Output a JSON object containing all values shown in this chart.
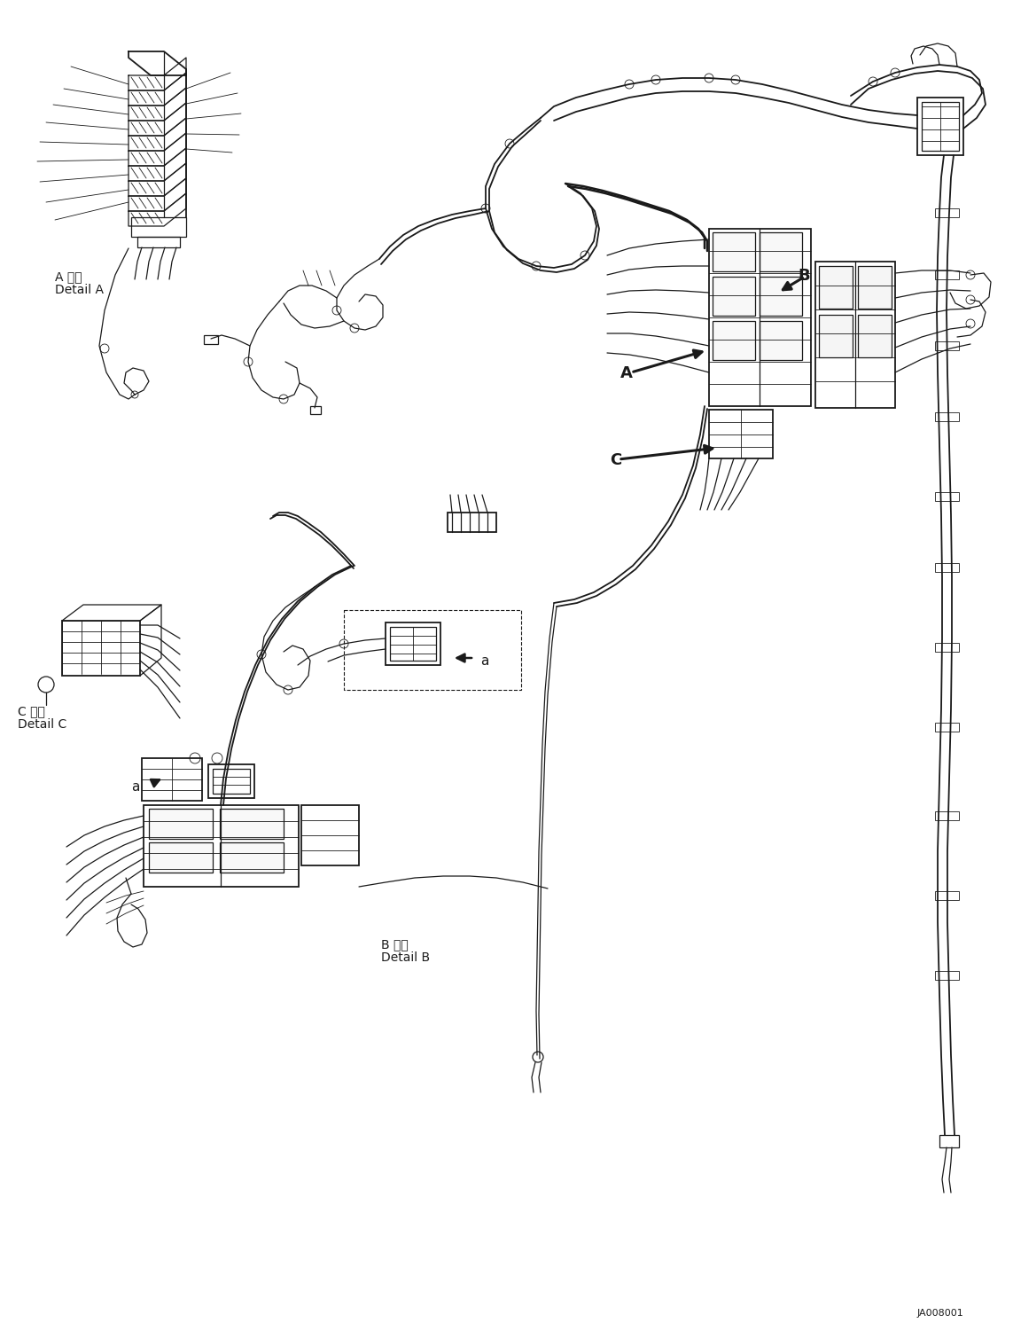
{
  "bg_color": "#ffffff",
  "line_color": "#1a1a1a",
  "figsize": [
    11.43,
    14.92
  ],
  "dpi": 100,
  "labels": {
    "detail_a_jp": "A 詳細",
    "detail_a_en": "Detail A",
    "detail_b_jp": "B 詳細",
    "detail_b_en": "Detail B",
    "detail_c_jp": "C 詳細",
    "detail_c_en": "Detail C",
    "part_id": "JA008001",
    "label_a": "A",
    "label_b": "B",
    "label_c": "C",
    "label_a_small": "a"
  },
  "font_size_label": 13,
  "font_size_detail": 10,
  "font_size_id": 8
}
